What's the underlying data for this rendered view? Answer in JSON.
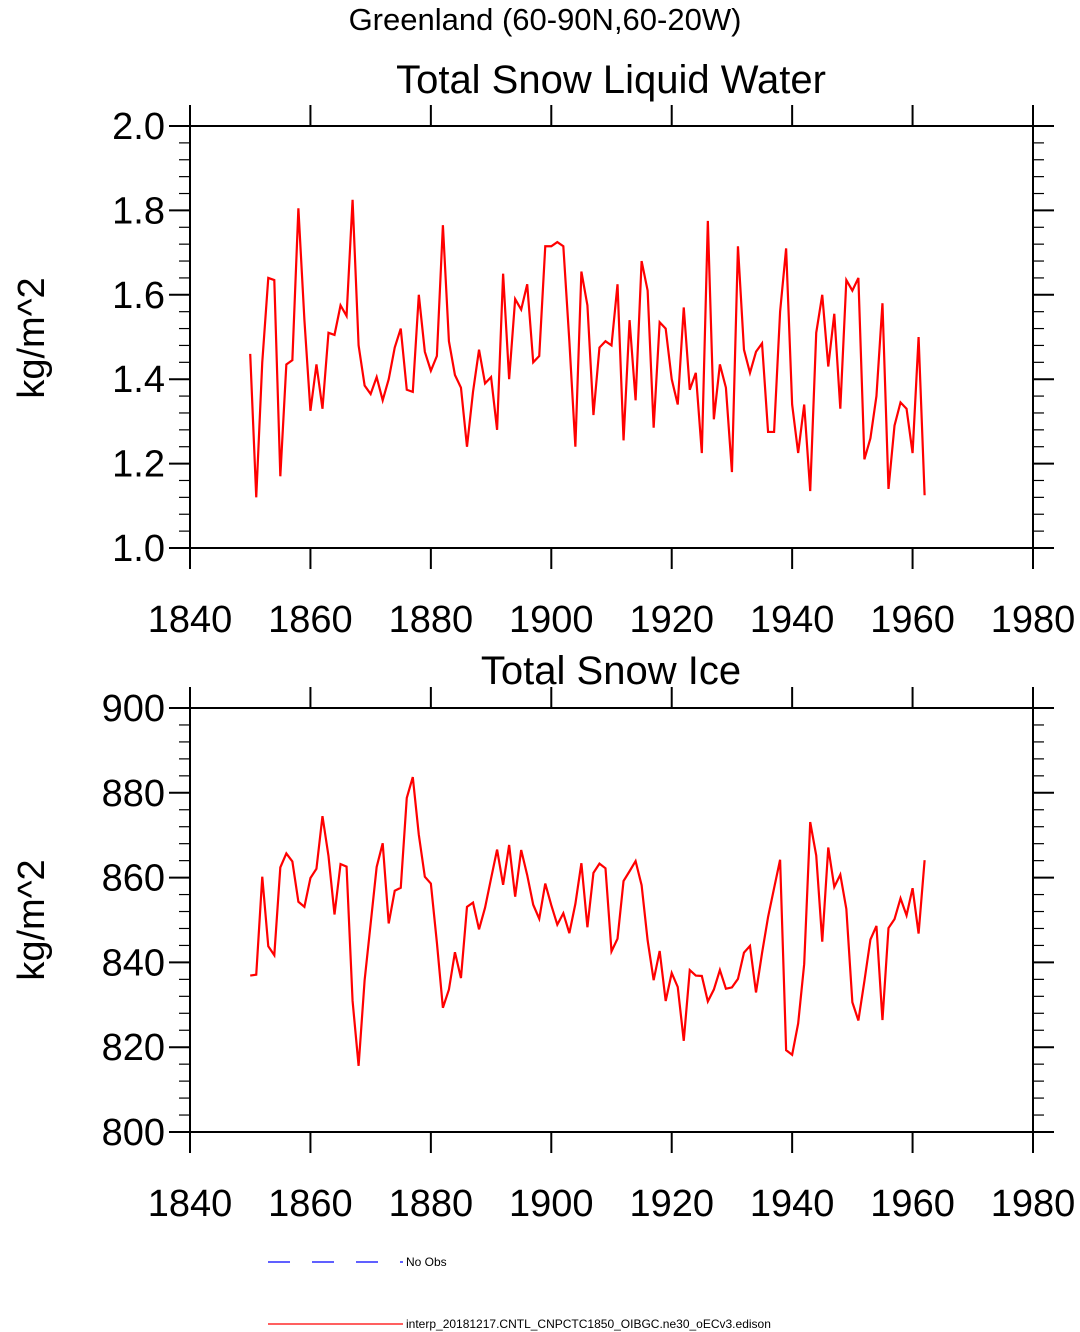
{
  "figure": {
    "suptitle": "Greenland (60-90N,60-20W)"
  },
  "colors": {
    "model_line": "#ff0000",
    "obs_line": "#0000ff",
    "axes": "#000000"
  },
  "chart_data": [
    {
      "type": "line",
      "title": "Total Snow Liquid Water",
      "xlabel": "",
      "ylabel": "kg/m^2",
      "xlim": [
        1840,
        1980
      ],
      "ylim": [
        1.0,
        2.0
      ],
      "x_ticks": [
        1840,
        1860,
        1880,
        1900,
        1920,
        1940,
        1960,
        1980
      ],
      "x_tick_labels": [
        "1840",
        "1860",
        "1880",
        "1900",
        "1920",
        "1940",
        "1960",
        "1980"
      ],
      "y_ticks": [
        1.0,
        1.2,
        1.4,
        1.6,
        1.8,
        2.0
      ],
      "y_tick_labels": [
        "1.0",
        "1.2",
        "1.4",
        "1.6",
        "1.8",
        "2.0"
      ],
      "x_start": 1850,
      "x_step": 1,
      "series": [
        {
          "name": "interp_20181217.CNTL_CNPCTC1850_OIBGC.ne30_oECv3.edison",
          "values": [
            1.46,
            1.12,
            1.44,
            1.64,
            1.635,
            1.17,
            1.435,
            1.445,
            1.805,
            1.54,
            1.325,
            1.435,
            1.33,
            1.51,
            1.505,
            1.575,
            1.55,
            1.825,
            1.48,
            1.385,
            1.365,
            1.405,
            1.35,
            1.4,
            1.475,
            1.52,
            1.375,
            1.37,
            1.6,
            1.465,
            1.42,
            1.455,
            1.765,
            1.49,
            1.41,
            1.38,
            1.24,
            1.37,
            1.47,
            1.39,
            1.405,
            1.28,
            1.65,
            1.4,
            1.59,
            1.565,
            1.625,
            1.44,
            1.455,
            1.715,
            1.715,
            1.725,
            1.715,
            1.49,
            1.24,
            1.655,
            1.575,
            1.315,
            1.475,
            1.49,
            1.48,
            1.625,
            1.255,
            1.54,
            1.35,
            1.68,
            1.61,
            1.285,
            1.535,
            1.52,
            1.4,
            1.34,
            1.57,
            1.375,
            1.415,
            1.225,
            1.775,
            1.305,
            1.435,
            1.38,
            1.18,
            1.715,
            1.47,
            1.415,
            1.465,
            1.485,
            1.275,
            1.275,
            1.56,
            1.71,
            1.34,
            1.225,
            1.34,
            1.135,
            1.51,
            1.6,
            1.43,
            1.555,
            1.33,
            1.635,
            1.61,
            1.64,
            1.21,
            1.26,
            1.36,
            1.58,
            1.14,
            1.29,
            1.345,
            1.33,
            1.225,
            1.5,
            1.125
          ]
        }
      ]
    },
    {
      "type": "line",
      "title": "Total Snow Ice",
      "xlabel": "",
      "ylabel": "kg/m^2",
      "xlim": [
        1840,
        1980
      ],
      "ylim": [
        800,
        900
      ],
      "x_ticks": [
        1840,
        1860,
        1880,
        1900,
        1920,
        1940,
        1960,
        1980
      ],
      "x_tick_labels": [
        "1840",
        "1860",
        "1880",
        "1900",
        "1920",
        "1940",
        "1960",
        "1980"
      ],
      "y_ticks": [
        800,
        820,
        840,
        860,
        880,
        900
      ],
      "y_tick_labels": [
        "800",
        "820",
        "840",
        "860",
        "880",
        "900"
      ],
      "x_start": 1850,
      "x_step": 1,
      "series": [
        {
          "name": "interp_20181217.CNTL_CNPCTC1850_OIBGC.ne30_oECv3.edison",
          "values": [
            836.9,
            837.1,
            860.2,
            843.8,
            841.7,
            862.4,
            865.7,
            863.8,
            854.3,
            853.1,
            859.9,
            862.1,
            874.5,
            865.1,
            851.3,
            863.2,
            862.6,
            830.9,
            815.6,
            835.8,
            849.1,
            862.5,
            868.1,
            849.2,
            856.9,
            857.6,
            878.8,
            883.7,
            870.1,
            860.2,
            858.6,
            844.7,
            829.3,
            833.6,
            842.4,
            836.3,
            853.1,
            854.1,
            847.8,
            852.9,
            859.8,
            866.6,
            858.3,
            867.7,
            855.5,
            866.5,
            860.6,
            853.6,
            850.3,
            858.6,
            853.5,
            848.9,
            851.6,
            846.9,
            853.8,
            863.4,
            848.3,
            861.1,
            863.3,
            862.2,
            842.6,
            845.6,
            859.2,
            861.5,
            863.9,
            858.2,
            845.2,
            835.8,
            842.7,
            830.9,
            837.5,
            834.2,
            821.5,
            838.2,
            836.9,
            836.8,
            830.8,
            833.6,
            838.2,
            833.8,
            834.1,
            836.1,
            842.3,
            843.9,
            832.9,
            842.2,
            850.7,
            857.5,
            864.2,
            819.3,
            818.2,
            825.6,
            839.6,
            873.1,
            865.2,
            844.9,
            867.1,
            857.8,
            860.7,
            852.6,
            830.6,
            826.3,
            835.6,
            845.4,
            848.6,
            826.4,
            848.1,
            850.2,
            855.1,
            851.1,
            857.5,
            846.8,
            864.1
          ]
        }
      ]
    }
  ],
  "legend": {
    "entries": [
      {
        "label": "No Obs",
        "style": "dashed",
        "color": "#0000ff"
      },
      {
        "label": "interp_20181217.CNTL_CNPCTC1850_OIBGC.ne30_oECv3.edison",
        "style": "solid",
        "color": "#ff0000"
      }
    ]
  }
}
